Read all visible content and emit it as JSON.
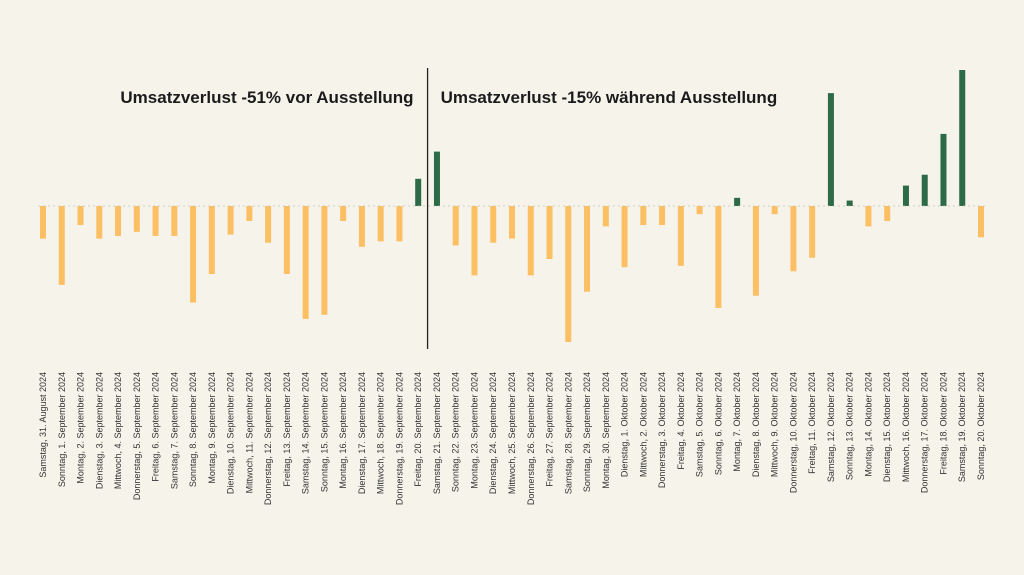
{
  "chart_data": {
    "type": "bar",
    "title": "",
    "xlabel": "",
    "ylabel": "",
    "ylim": [
      -100,
      100
    ],
    "grid": false,
    "legend": "none",
    "colors": {
      "positive": "#2d6b48",
      "negative": "#fcbf63",
      "divider": "#222222",
      "background": "#f5f3ea"
    },
    "annotations": {
      "left": "Umsatzverlust -51% vor Ausstellung",
      "right": "Umsatzverlust -15% während Ausstellung"
    },
    "divider_after_index": 20,
    "categories": [
      "Samstag, 31. August 2024",
      "Sonntag, 1. September 2024",
      "Montag, 2. September 2024",
      "Dienstag, 3. September 2024",
      "Mittwoch, 4. September 2024",
      "Donnerstag, 5. September 2024",
      "Freitag, 6. September 2024",
      "Samstag, 7. September 2024",
      "Sonntag, 8. September 2024",
      "Montag, 9. September 2024",
      "Dienstag, 10. September 2024",
      "Mittwoch, 11. September 2024",
      "Donnerstag, 12. September 2024",
      "Freitag, 13. September 2024",
      "Samstag, 14. September 2024",
      "Sonntag, 15. September 2024",
      "Montag, 16. September 2024",
      "Dienstag, 17. September 2024",
      "Mittwoch, 18. September 2024",
      "Donnerstag, 19. September 2024",
      "Freitag, 20. September 2024",
      "Samstag, 21. September 2024",
      "Sonntag, 22. September 2024",
      "Montag, 23. September 2024",
      "Dienstag, 24. September 2024",
      "Mittwoch, 25. September 2024",
      "Donnerstag, 26. September 2024",
      "Freitag, 27. September 2024",
      "Samstag, 28. September 2024",
      "Sonntag, 29. September 2024",
      "Montag, 30. September 2024",
      "Dienstag, 1. Oktober 2024",
      "Mittwoch, 2. Oktober 2024",
      "Donnerstag, 3. Oktober 2024",
      "Freitag, 4. Oktober 2024",
      "Samstag, 5. Oktober 2024",
      "Sonntag, 6. Oktober 2024",
      "Montag, 7. Oktober 2024",
      "Dienstag, 8. Oktober 2024",
      "Mittwoch, 9. Oktober 2024",
      "Donnerstag, 10. Oktober 2024",
      "Freitag, 11. Oktober 2024",
      "Samstag, 12. Oktober 2024",
      "Sonntag, 13. Oktober 2024",
      "Montag, 14. Oktober 2024",
      "Dienstag, 15. Oktober 2024",
      "Mittwoch, 16. Oktober 2024",
      "Donnerstag, 17. Oktober 2024",
      "Freitag, 18. Oktober 2024",
      "Samstag, 19. Oktober 2024",
      "Sonntag, 20. Oktober 2024"
    ],
    "values": [
      -24,
      -58,
      -14,
      -24,
      -22,
      -19,
      -22,
      -22,
      -71,
      -50,
      -21,
      -11,
      -27,
      -50,
      -83,
      -80,
      -11,
      -30,
      -26,
      -26,
      20,
      40,
      -29,
      -51,
      -27,
      -24,
      -51,
      -39,
      -100,
      -63,
      -15,
      -45,
      -14,
      -14,
      -44,
      -6,
      -75,
      6,
      -66,
      -6,
      -48,
      -38,
      83,
      4,
      -15,
      -11,
      15,
      23,
      53,
      100,
      -23
    ]
  }
}
